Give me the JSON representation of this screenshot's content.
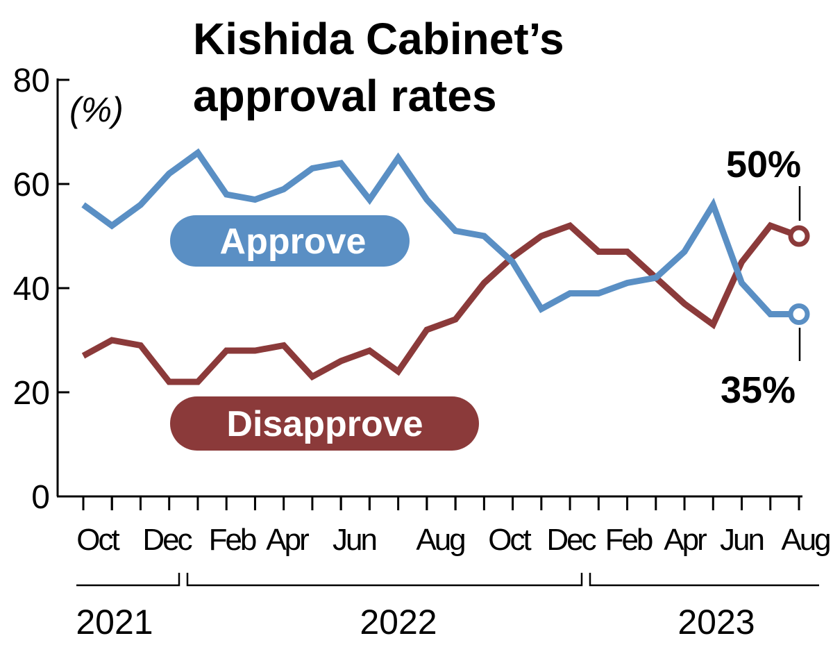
{
  "chart_data": {
    "type": "line",
    "title_lines": [
      "Kishida Cabinet’s",
      "approval rates"
    ],
    "unit": "(%)",
    "ylim": [
      0,
      80
    ],
    "y_ticks": [
      "0",
      "20",
      "40",
      "60",
      "80"
    ],
    "x_labels": [
      "Oct",
      "Dec",
      "Feb",
      "Apr",
      "Jun",
      "Aug",
      "Oct",
      "Dec",
      "Feb",
      "Apr",
      "Jun",
      "Aug"
    ],
    "years": [
      "2021",
      "2022",
      "2023"
    ],
    "grid": false,
    "legend": "inline",
    "series": [
      {
        "name": "Approve",
        "color": "#5a8fc4",
        "end_label": "35%",
        "values": [
          56,
          52,
          56,
          62,
          66,
          58,
          57,
          59,
          63,
          64,
          57,
          65,
          57,
          51,
          50,
          45,
          36,
          39,
          39,
          41,
          42,
          47,
          56,
          41,
          35,
          35
        ]
      },
      {
        "name": "Disapprove",
        "color": "#8b3a3a",
        "end_label": "50%",
        "values": [
          27,
          30,
          29,
          22,
          22,
          28,
          28,
          29,
          23,
          26,
          28,
          24,
          32,
          34,
          41,
          46,
          50,
          52,
          47,
          47,
          42,
          37,
          33,
          45,
          52,
          50
        ]
      }
    ]
  }
}
